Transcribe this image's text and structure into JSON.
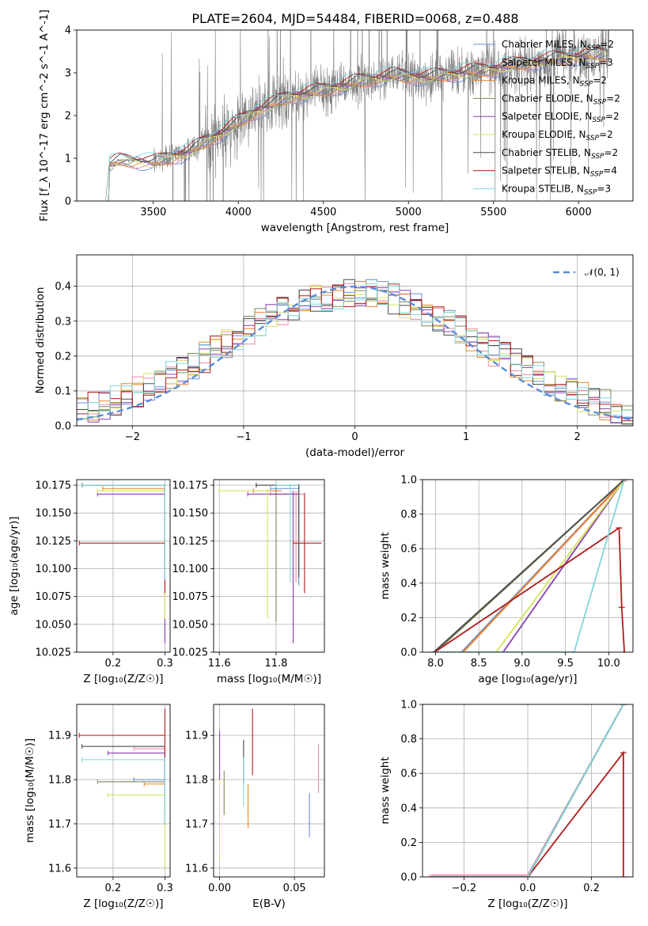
{
  "page": {
    "title": "PLATE=2604, MJD=54484, FIBERID=0068, z=0.488"
  },
  "series_names": [
    "Chabrier MILES, N_SSP=2",
    "Salpeter MILES, N_SSP=3",
    "Kroupa MILES, N_SSP=2",
    "Chabrier ELODIE, N_SSP=2",
    "Salpeter ELODIE, N_SSP=2",
    "Kroupa ELODIE, N_SSP=2",
    "Chabrier STELIB, N_SSP=2",
    "Salpeter STELIB, N_SSP=4",
    "Kroupa STELIB, N_SSP=3"
  ],
  "series_colors": [
    "#6a8ed6",
    "#f08aa6",
    "#e8862a",
    "#7e8c5a",
    "#8a3fb0",
    "#d4e35a",
    "#4a4a4a",
    "#b01c1c",
    "#7fd6dc"
  ],
  "chart_data": [
    {
      "id": "spectrum",
      "type": "line",
      "xlabel": "wavelength [Angstrom, rest frame]",
      "ylabel": "Flux [f_λ 10^-17 erg cm^-2 s^-1 A^-1]",
      "xlim": [
        3050,
        6320
      ],
      "ylim": [
        0,
        4
      ],
      "xticks": [
        3500,
        4000,
        4500,
        5000,
        5500,
        6000
      ],
      "yticks": [
        0,
        1,
        2,
        3,
        4
      ],
      "grid": false,
      "legend": "top-right",
      "data_series": {
        "name": "",
        "color": "#808080"
      },
      "model_anchor_x": [
        3220,
        3240,
        3300,
        3400,
        3500,
        3700,
        3900,
        4100,
        4300,
        4500,
        4700,
        4900,
        5100,
        5300,
        5500,
        5700,
        5900,
        6150
      ],
      "model_anchor_y": [
        0,
        0.85,
        0.95,
        0.95,
        0.9,
        1.15,
        1.6,
        2.1,
        2.45,
        2.6,
        2.8,
        2.95,
        2.9,
        3.0,
        3.1,
        3.25,
        3.35,
        3.45
      ]
    },
    {
      "id": "residuals",
      "type": "line",
      "xlabel": "(data-model)/error",
      "ylabel": "Normed distribution",
      "xlim": [
        -2.5,
        2.5
      ],
      "ylim": [
        0,
        0.49
      ],
      "xticks": [
        -2,
        -1,
        0,
        1,
        2
      ],
      "yticks": [
        0,
        0.1,
        0.2,
        0.3,
        0.4
      ],
      "grid": true,
      "legend": "top-right",
      "reference": {
        "name": "𝒩(0, 1)",
        "mean": 0,
        "sigma": 1,
        "color": "#5b8bd9"
      }
    },
    {
      "id": "age-vs-Z",
      "type": "scatter",
      "xlabel": "Z [log₁₀(Z/Z☉)]",
      "ylabel": "age  [log₁₀(age/yr)]",
      "xlim": [
        0.13,
        0.31
      ],
      "ylim": [
        10.025,
        10.18
      ],
      "xticks": [
        0.2,
        0.3
      ],
      "yticks": [
        10.025,
        10.05,
        10.075,
        10.1,
        10.125,
        10.15,
        10.175
      ],
      "grid": true,
      "points": [
        {
          "s": 0,
          "x": 0.3,
          "y": 10.175,
          "xlo": 0.14,
          "xhi": 0.3,
          "ylo": 10.12,
          "yhi": 10.176
        },
        {
          "s": 1,
          "x": 0.3,
          "y": 10.175,
          "xlo": 0.141,
          "xhi": 0.3,
          "ylo": 10.125,
          "yhi": 10.176
        },
        {
          "s": 2,
          "x": 0.3,
          "y": 10.172,
          "xlo": 0.18,
          "xhi": 0.3,
          "ylo": 10.1,
          "yhi": 10.174
        },
        {
          "s": 3,
          "x": 0.3,
          "y": 10.175,
          "xlo": 0.14,
          "xhi": 0.3,
          "ylo": 10.1,
          "yhi": 10.176
        },
        {
          "s": 4,
          "x": 0.3,
          "y": 10.167,
          "xlo": 0.17,
          "xhi": 0.3,
          "ylo": 10.033,
          "yhi": 10.17
        },
        {
          "s": 5,
          "x": 0.3,
          "y": 10.17,
          "xlo": 0.17,
          "xhi": 0.3,
          "ylo": 10.055,
          "yhi": 10.172
        },
        {
          "s": 6,
          "x": 0.3,
          "y": 10.175,
          "xlo": 0.14,
          "xhi": 0.3,
          "ylo": 10.09,
          "yhi": 10.176
        },
        {
          "s": 7,
          "x": 0.3,
          "y": 10.123,
          "xlo": 0.135,
          "xhi": 0.3,
          "ylo": 10.078,
          "yhi": 10.123
        },
        {
          "s": 8,
          "x": 0.3,
          "y": 10.175,
          "xlo": 0.14,
          "xhi": 0.3,
          "ylo": 10.09,
          "yhi": 10.176
        }
      ]
    },
    {
      "id": "age-vs-mass",
      "type": "scatter",
      "xlabel": "mass [log₁₀(M/M☉)]",
      "ylabel": "",
      "xlim": [
        11.58,
        11.97
      ],
      "ylim": [
        10.025,
        10.18
      ],
      "xticks": [
        11.6,
        11.8
      ],
      "yticks": [
        10.025,
        10.05,
        10.075,
        10.1,
        10.125,
        10.15,
        10.175
      ],
      "grid": true,
      "points": [
        {
          "s": 0,
          "x": 11.88,
          "y": 10.172,
          "xlo": 11.78,
          "xhi": 11.88,
          "ylo": 10.085,
          "yhi": 10.176
        },
        {
          "s": 1,
          "x": 11.87,
          "y": 10.167,
          "xlo": 11.78,
          "xhi": 11.9,
          "ylo": 10.088,
          "yhi": 10.17
        },
        {
          "s": 2,
          "x": 11.8,
          "y": 10.17,
          "xlo": 11.72,
          "xhi": 11.82,
          "ylo": 10.055,
          "yhi": 10.172
        },
        {
          "s": 3,
          "x": 11.8,
          "y": 10.175,
          "xlo": 11.73,
          "xhi": 11.87,
          "ylo": 10.052,
          "yhi": 10.176
        },
        {
          "s": 4,
          "x": 11.86,
          "y": 10.167,
          "xlo": 11.7,
          "xhi": 11.88,
          "ylo": 10.033,
          "yhi": 10.17
        },
        {
          "s": 5,
          "x": 11.77,
          "y": 10.17,
          "xlo": 11.6,
          "xhi": 11.78,
          "ylo": 10.055,
          "yhi": 10.172
        },
        {
          "s": 6,
          "x": 11.88,
          "y": 10.175,
          "xlo": 11.73,
          "xhi": 11.88,
          "ylo": 10.092,
          "yhi": 10.176
        },
        {
          "s": 7,
          "x": 11.9,
          "y": 10.123,
          "xlo": 11.86,
          "xhi": 11.96,
          "ylo": 10.078,
          "yhi": 10.168
        },
        {
          "s": 8,
          "x": 11.85,
          "y": 10.175,
          "xlo": 11.8,
          "xhi": 11.88,
          "ylo": 10.088,
          "yhi": 10.176
        }
      ]
    },
    {
      "id": "cumulative-age",
      "type": "line",
      "xlabel": "age  [log₁₀(age/yr)]",
      "ylabel": "mass weight",
      "xlim": [
        7.85,
        10.28
      ],
      "ylim": [
        0,
        1
      ],
      "xticks": [
        8.0,
        8.5,
        9.0,
        9.5,
        10.0
      ],
      "yticks": [
        0,
        0.2,
        0.4,
        0.6,
        0.8,
        1.0
      ],
      "grid": true,
      "series": [
        {
          "s": 0,
          "x": [
            8.3,
            10.18
          ],
          "y": [
            0,
            1
          ]
        },
        {
          "s": 1,
          "x": [
            8.32,
            10.17,
            10.2
          ],
          "y": [
            0,
            0.99,
            1
          ]
        },
        {
          "s": 2,
          "x": [
            8.32,
            10.18
          ],
          "y": [
            0,
            1
          ]
        },
        {
          "s": 3,
          "x": [
            8.0,
            10.18
          ],
          "y": [
            0,
            1
          ]
        },
        {
          "s": 4,
          "x": [
            8.78,
            10.18
          ],
          "y": [
            0,
            1
          ]
        },
        {
          "s": 5,
          "x": [
            8.7,
            10.18
          ],
          "y": [
            0,
            1
          ]
        },
        {
          "s": 6,
          "x": [
            7.98,
            10.18
          ],
          "y": [
            0,
            1
          ]
        },
        {
          "s": 7,
          "x": [
            7.99,
            10.12,
            10.15,
            10.18
          ],
          "y": [
            0,
            0.72,
            0.26,
            0
          ]
        },
        {
          "s": 8,
          "x": [
            8.0,
            9.6,
            10.18
          ],
          "y": [
            0,
            0,
            1
          ]
        }
      ]
    },
    {
      "id": "mass-vs-Z",
      "type": "scatter",
      "xlabel": "Z [log₁₀(Z/Z☉)]",
      "ylabel": "mass [log₁₀(M/M☉)]",
      "xlim": [
        0.13,
        0.31
      ],
      "ylim": [
        11.58,
        11.97
      ],
      "xticks": [
        0.2,
        0.3
      ],
      "yticks": [
        11.6,
        11.7,
        11.8,
        11.9
      ],
      "grid": true,
      "points": [
        {
          "s": 0,
          "x": 0.3,
          "y": 11.8,
          "xlo": 0.24,
          "xhi": 0.3,
          "ylo": 11.7,
          "yhi": 11.8
        },
        {
          "s": 1,
          "x": 0.3,
          "y": 11.87,
          "xlo": 0.24,
          "xhi": 0.3,
          "ylo": 11.8,
          "yhi": 11.87
        },
        {
          "s": 2,
          "x": 0.3,
          "y": 11.79,
          "xlo": 0.26,
          "xhi": 0.3,
          "ylo": 11.7,
          "yhi": 11.79
        },
        {
          "s": 3,
          "x": 0.3,
          "y": 11.795,
          "xlo": 0.17,
          "xhi": 0.3,
          "ylo": 11.7,
          "yhi": 11.8
        },
        {
          "s": 4,
          "x": 0.3,
          "y": 11.86,
          "xlo": 0.19,
          "xhi": 0.3,
          "ylo": 11.75,
          "yhi": 11.86
        },
        {
          "s": 5,
          "x": 0.3,
          "y": 11.765,
          "xlo": 0.19,
          "xhi": 0.3,
          "ylo": 11.6,
          "yhi": 11.77
        },
        {
          "s": 6,
          "x": 0.3,
          "y": 11.875,
          "xlo": 0.14,
          "xhi": 0.3,
          "ylo": 11.8,
          "yhi": 11.875
        },
        {
          "s": 7,
          "x": 0.3,
          "y": 11.9,
          "xlo": 0.135,
          "xhi": 0.3,
          "ylo": 11.8,
          "yhi": 11.96
        },
        {
          "s": 8,
          "x": 0.3,
          "y": 11.845,
          "xlo": 0.14,
          "xhi": 0.3,
          "ylo": 11.7,
          "yhi": 11.85
        }
      ]
    },
    {
      "id": "mass-vs-EBV",
      "type": "scatter",
      "xlabel": "E(B-V)",
      "ylabel": "",
      "xlim": [
        -0.004,
        0.07
      ],
      "ylim": [
        11.58,
        11.97
      ],
      "xticks": [
        0.0,
        0.05
      ],
      "yticks": [
        11.6,
        11.7,
        11.8,
        11.9
      ],
      "grid": true,
      "points": [
        {
          "s": 0,
          "ylo": 11.67,
          "yhi": 11.77,
          "x": 0.06
        },
        {
          "s": 1,
          "ylo": 11.77,
          "yhi": 11.88,
          "x": 0.066
        },
        {
          "s": 2,
          "ylo": 11.69,
          "yhi": 11.79,
          "x": 0.019
        },
        {
          "s": 3,
          "ylo": 11.72,
          "yhi": 11.82,
          "x": 0.003
        },
        {
          "s": 4,
          "ylo": 11.8,
          "yhi": 11.91,
          "x": 0.0
        },
        {
          "s": 5,
          "ylo": 11.62,
          "yhi": 11.8,
          "x": 0.0
        },
        {
          "s": 6,
          "ylo": 11.79,
          "yhi": 11.89,
          "x": 0.016
        },
        {
          "s": 7,
          "ylo": 11.81,
          "yhi": 11.96,
          "x": 0.022
        },
        {
          "s": 8,
          "ylo": 11.74,
          "yhi": 11.85,
          "x": 0.016
        }
      ]
    },
    {
      "id": "cumulative-Z",
      "type": "line",
      "xlabel": "Z [log₁₀(Z/Z☉)]",
      "ylabel": "mass weight",
      "xlim": [
        -0.33,
        0.33
      ],
      "ylim": [
        0,
        1
      ],
      "xticks": [
        -0.2,
        0.0,
        0.2
      ],
      "yticks": [
        0,
        0.2,
        0.4,
        0.6,
        0.8,
        1.0
      ],
      "grid": true,
      "series": [
        {
          "s": 0,
          "x": [
            -0.3,
            0.0,
            0.3
          ],
          "y": [
            0,
            0,
            1
          ]
        },
        {
          "s": 1,
          "x": [
            -0.3,
            0.0,
            0.3
          ],
          "y": [
            0.01,
            0.01,
            1
          ]
        },
        {
          "s": 2,
          "x": [
            -0.3,
            0.0,
            0.3
          ],
          "y": [
            0,
            0,
            1
          ]
        },
        {
          "s": 3,
          "x": [
            -0.3,
            0.0,
            0.3
          ],
          "y": [
            0,
            0,
            1
          ]
        },
        {
          "s": 4,
          "x": [
            -0.3,
            0.0,
            0.3
          ],
          "y": [
            0,
            0,
            1
          ]
        },
        {
          "s": 5,
          "x": [
            -0.3,
            0.0,
            0.3
          ],
          "y": [
            0,
            0,
            1
          ]
        },
        {
          "s": 6,
          "x": [
            -0.3,
            0.0,
            0.3
          ],
          "y": [
            0,
            0,
            1
          ]
        },
        {
          "s": 7,
          "x": [
            -0.3,
            0.0,
            0.3,
            0.3
          ],
          "y": [
            0,
            0,
            0.72,
            0.0
          ]
        },
        {
          "s": 8,
          "x": [
            -0.3,
            0.0,
            0.3
          ],
          "y": [
            0,
            0,
            1
          ]
        }
      ]
    }
  ]
}
